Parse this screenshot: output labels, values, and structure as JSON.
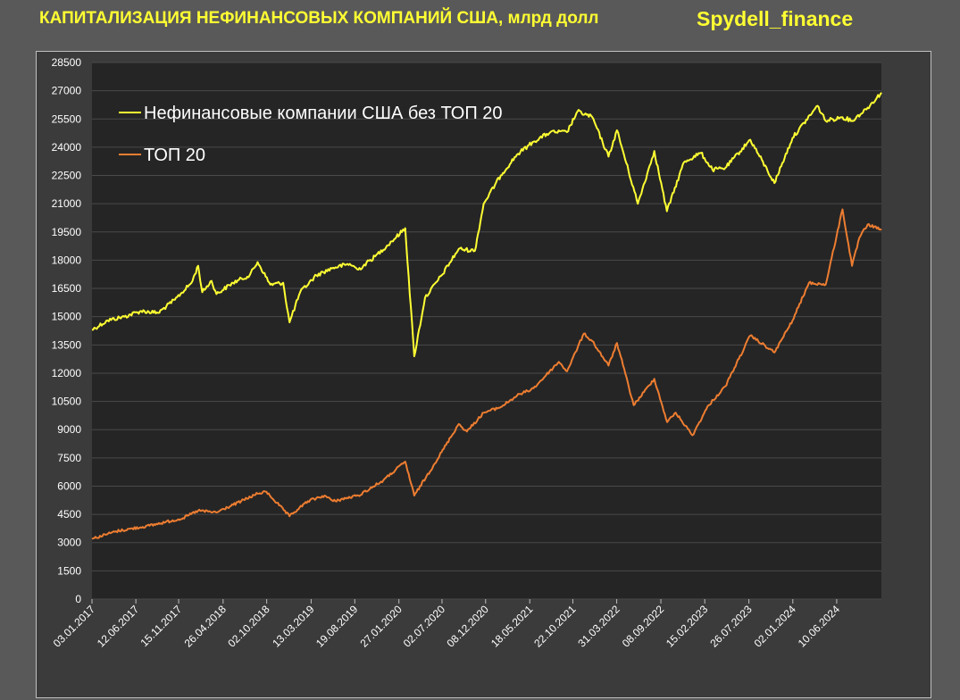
{
  "header": {
    "title": "КАПИТАЛИЗАЦИЯ НЕФИНАНСОВЫХ КОМПАНИЙ США, млрд долл",
    "brand": "Spydell_finance"
  },
  "colors": {
    "background": "#595959",
    "plot_background": "#252525",
    "grid": "#4a4a4a",
    "series_1": "#ffff33",
    "series_2": "#ed7d31"
  },
  "chart_data": {
    "type": "line",
    "title": "",
    "xlabel": "",
    "ylabel": "",
    "ylim": [
      0,
      28500
    ],
    "yticks": [
      0,
      1500,
      3000,
      4500,
      6000,
      7500,
      9000,
      10500,
      12000,
      13500,
      15000,
      16500,
      18000,
      19500,
      21000,
      22500,
      24000,
      25500,
      27000,
      28500
    ],
    "xlim": [
      "03.01.2017",
      "20.11.2024"
    ],
    "xtick_labels": [
      "03.01.2017",
      "12.06.2017",
      "15.11.2017",
      "26.04.2018",
      "02.10.2018",
      "13.03.2019",
      "19.08.2019",
      "27.01.2020",
      "02.07.2020",
      "08.12.2020",
      "18.05.2021",
      "22.10.2021",
      "31.03.2022",
      "08.09.2022",
      "15.02.2023",
      "26.07.2023",
      "02.01.2024",
      "10.06.2024"
    ],
    "grid": "horizontal",
    "legend_position": "top-left",
    "series": [
      {
        "name": "Нефинансовые компании США без ТОП 20",
        "color": "#ffff33",
        "points": [
          [
            "03.01.2017",
            14300
          ],
          [
            "01.03.2017",
            14800
          ],
          [
            "01.05.2017",
            15000
          ],
          [
            "01.07.2017",
            15300
          ],
          [
            "01.09.2017",
            15200
          ],
          [
            "01.11.2017",
            15900
          ],
          [
            "01.01.2018",
            16800
          ],
          [
            "25.01.2018",
            17700
          ],
          [
            "09.02.2018",
            16300
          ],
          [
            "15.03.2018",
            16900
          ],
          [
            "02.04.2018",
            16200
          ],
          [
            "01.06.2018",
            16800
          ],
          [
            "01.08.2018",
            17200
          ],
          [
            "30.08.2018",
            17900
          ],
          [
            "15.10.2018",
            16700
          ],
          [
            "01.12.2018",
            16800
          ],
          [
            "24.12.2018",
            14700
          ],
          [
            "01.02.2019",
            16300
          ],
          [
            "01.04.2019",
            17200
          ],
          [
            "01.06.2019",
            17600
          ],
          [
            "01.08.2019",
            17800
          ],
          [
            "01.09.2019",
            17500
          ],
          [
            "01.11.2019",
            18200
          ],
          [
            "01.01.2020",
            19000
          ],
          [
            "19.02.2020",
            19700
          ],
          [
            "23.03.2020",
            12900
          ],
          [
            "01.05.2020",
            16000
          ],
          [
            "01.07.2020",
            17200
          ],
          [
            "01.09.2020",
            18600
          ],
          [
            "30.10.2020",
            18500
          ],
          [
            "01.12.2020",
            21000
          ],
          [
            "01.02.2021",
            22500
          ],
          [
            "01.04.2021",
            23600
          ],
          [
            "01.06.2021",
            24300
          ],
          [
            "01.08.2021",
            24800
          ],
          [
            "01.10.2021",
            24800
          ],
          [
            "08.11.2021",
            25900
          ],
          [
            "01.01.2022",
            25600
          ],
          [
            "01.03.2022",
            23500
          ],
          [
            "01.04.2022",
            24900
          ],
          [
            "16.06.2022",
            21000
          ],
          [
            "15.08.2022",
            23800
          ],
          [
            "30.09.2022",
            20600
          ],
          [
            "01.12.2022",
            23200
          ],
          [
            "01.02.2023",
            23700
          ],
          [
            "15.03.2023",
            22800
          ],
          [
            "01.05.2023",
            22900
          ],
          [
            "31.07.2023",
            24400
          ],
          [
            "27.10.2023",
            22100
          ],
          [
            "01.01.2024",
            24500
          ],
          [
            "01.04.2024",
            26200
          ],
          [
            "01.05.2024",
            25400
          ],
          [
            "01.07.2024",
            25600
          ],
          [
            "05.08.2024",
            25400
          ],
          [
            "01.10.2024",
            26100
          ],
          [
            "20.11.2024",
            26900
          ]
        ]
      },
      {
        "name": "ТОП 20",
        "color": "#ed7d31",
        "points": [
          [
            "03.01.2017",
            3200
          ],
          [
            "01.04.2017",
            3600
          ],
          [
            "01.08.2017",
            3900
          ],
          [
            "01.12.2017",
            4300
          ],
          [
            "25.01.2018",
            4700
          ],
          [
            "01.04.2018",
            4600
          ],
          [
            "01.07.2018",
            5200
          ],
          [
            "30.08.2018",
            5600
          ],
          [
            "01.10.2018",
            5700
          ],
          [
            "24.12.2018",
            4400
          ],
          [
            "01.03.2019",
            5200
          ],
          [
            "01.05.2019",
            5500
          ],
          [
            "01.06.2019",
            5200
          ],
          [
            "01.09.2019",
            5500
          ],
          [
            "01.12.2019",
            6300
          ],
          [
            "19.02.2020",
            7300
          ],
          [
            "23.03.2020",
            5500
          ],
          [
            "01.06.2020",
            7100
          ],
          [
            "01.09.2020",
            9300
          ],
          [
            "01.10.2020",
            8900
          ],
          [
            "01.12.2020",
            9900
          ],
          [
            "01.02.2021",
            10200
          ],
          [
            "01.04.2021",
            10800
          ],
          [
            "01.06.2021",
            11200
          ],
          [
            "01.09.2021",
            12600
          ],
          [
            "01.10.2021",
            12100
          ],
          [
            "01.12.2021",
            14100
          ],
          [
            "01.01.2022",
            13700
          ],
          [
            "01.03.2022",
            12400
          ],
          [
            "01.04.2022",
            13600
          ],
          [
            "01.06.2022",
            10300
          ],
          [
            "15.08.2022",
            11700
          ],
          [
            "01.10.2022",
            9400
          ],
          [
            "01.11.2022",
            9900
          ],
          [
            "01.01.2023",
            8700
          ],
          [
            "01.03.2023",
            10300
          ],
          [
            "01.05.2023",
            11300
          ],
          [
            "31.07.2023",
            14000
          ],
          [
            "27.10.2023",
            13100
          ],
          [
            "01.01.2024",
            14800
          ],
          [
            "01.03.2024",
            16800
          ],
          [
            "01.05.2024",
            16700
          ],
          [
            "01.07.2024",
            20700
          ],
          [
            "05.08.2024",
            17700
          ],
          [
            "01.09.2024",
            19200
          ],
          [
            "01.10.2024",
            19900
          ],
          [
            "20.11.2024",
            19600
          ]
        ]
      }
    ]
  }
}
